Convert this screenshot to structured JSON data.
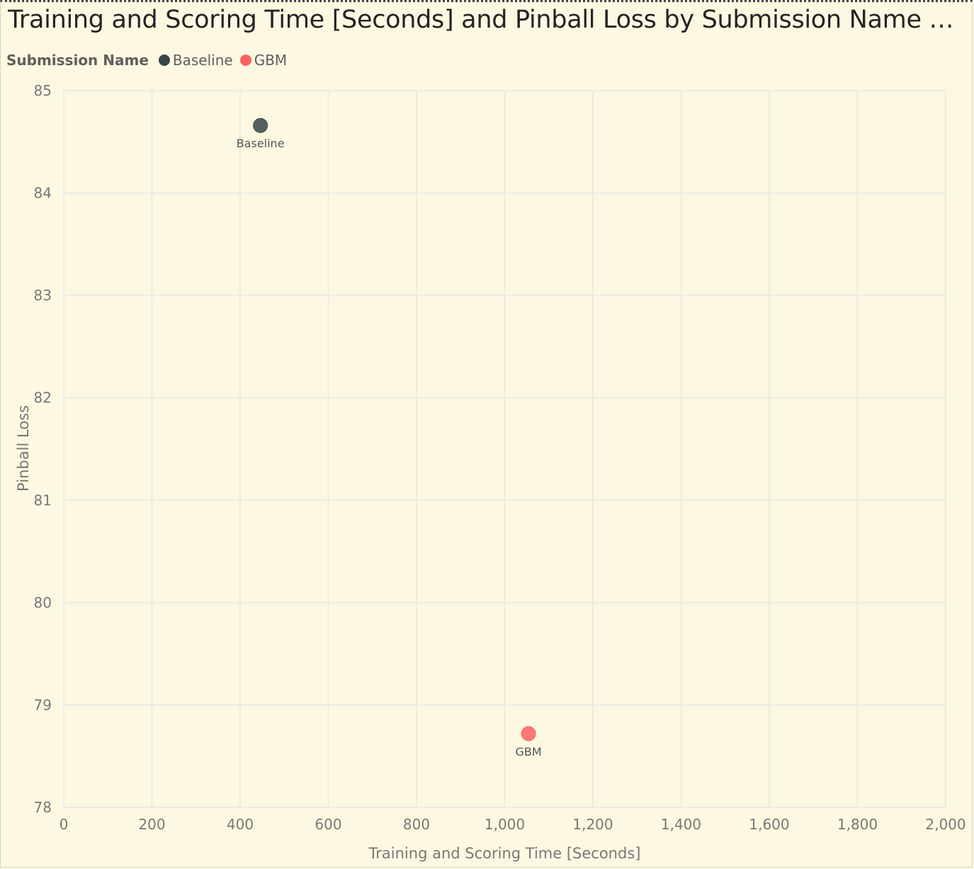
{
  "chart_data": {
    "type": "scatter",
    "title": "Training and Scoring Time [Seconds] and Pinball Loss by Submission Name and Su...",
    "legend_title": "Submission Name",
    "legend_placement": "top-left",
    "xlabel": "Training and Scoring Time [Seconds]",
    "ylabel": "Pinball Loss",
    "xlim": [
      0,
      2000
    ],
    "ylim": [
      78,
      85
    ],
    "x_ticks": [
      0,
      200,
      400,
      600,
      800,
      1000,
      1200,
      1400,
      1600,
      1800,
      2000
    ],
    "x_tick_labels": [
      "0",
      "200",
      "400",
      "600",
      "800",
      "1,000",
      "1,200",
      "1,400",
      "1,600",
      "1,800",
      "2,000"
    ],
    "y_ticks": [
      78,
      79,
      80,
      81,
      82,
      83,
      84,
      85
    ],
    "y_tick_labels": [
      "78",
      "79",
      "80",
      "81",
      "82",
      "83",
      "84",
      "85"
    ],
    "grid": true,
    "series": [
      {
        "name": "Baseline",
        "color": "#374649",
        "points": [
          {
            "x": 446,
            "y": 84.66,
            "label": "Baseline"
          }
        ]
      },
      {
        "name": "GBM",
        "color": "#fd625e",
        "points": [
          {
            "x": 1054,
            "y": 78.72,
            "label": "GBM"
          }
        ]
      }
    ]
  }
}
